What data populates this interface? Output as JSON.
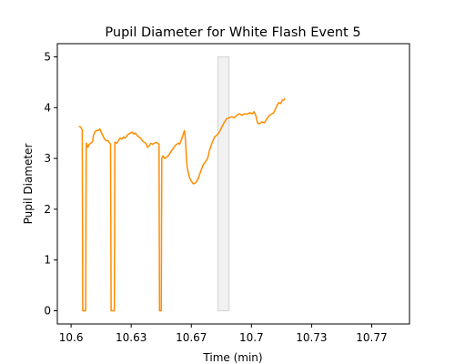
{
  "chart_data": {
    "type": "line",
    "title": "Pupil Diameter for White Flash Event 5",
    "xlabel": "Time (min)",
    "ylabel": "Pupil Diameter",
    "xlim": [
      10.592,
      10.797
    ],
    "ylim": [
      -0.26,
      5.26
    ],
    "x_ticks": [
      {
        "value": 10.6,
        "label": "10.6"
      },
      {
        "value": 10.635,
        "label": "10.63"
      },
      {
        "value": 10.67,
        "label": "10.67"
      },
      {
        "value": 10.705,
        "label": "10.7"
      },
      {
        "value": 10.74,
        "label": "10.73"
      },
      {
        "value": 10.775,
        "label": "10.77"
      }
    ],
    "y_ticks": [
      {
        "value": 0,
        "label": "0"
      },
      {
        "value": 1,
        "label": "1"
      },
      {
        "value": 2,
        "label": "2"
      },
      {
        "value": 3,
        "label": "3"
      },
      {
        "value": 4,
        "label": "4"
      },
      {
        "value": 5,
        "label": "5"
      }
    ],
    "grid": false,
    "legend": "none",
    "shaded_region": {
      "x_start": 10.6855,
      "x_end": 10.692,
      "y_start": 0,
      "y_end": 5,
      "color": "#bbbbbb",
      "opacity": 0.2
    },
    "series": [
      {
        "color": "#ff8c00",
        "points": [
          [
            10.6045,
            3.63
          ],
          [
            10.6055,
            3.62
          ],
          [
            10.6062,
            3.58
          ],
          [
            10.6065,
            3.56
          ],
          [
            10.6068,
            0.0
          ],
          [
            10.6085,
            0.0
          ],
          [
            10.6088,
            3.2
          ],
          [
            10.609,
            3.3
          ],
          [
            10.6098,
            3.22
          ],
          [
            10.6105,
            3.28
          ],
          [
            10.6115,
            3.3
          ],
          [
            10.6125,
            3.33
          ],
          [
            10.613,
            3.45
          ],
          [
            10.6138,
            3.52
          ],
          [
            10.6148,
            3.55
          ],
          [
            10.6158,
            3.55
          ],
          [
            10.6168,
            3.58
          ],
          [
            10.6175,
            3.52
          ],
          [
            10.6185,
            3.45
          ],
          [
            10.6195,
            3.38
          ],
          [
            10.6205,
            3.35
          ],
          [
            10.6215,
            3.35
          ],
          [
            10.6225,
            3.3
          ],
          [
            10.623,
            3.28
          ],
          [
            10.6233,
            0.0
          ],
          [
            10.6252,
            0.0
          ],
          [
            10.6255,
            3.32
          ],
          [
            10.6265,
            3.3
          ],
          [
            10.6275,
            3.35
          ],
          [
            10.6285,
            3.4
          ],
          [
            10.6295,
            3.38
          ],
          [
            10.6305,
            3.42
          ],
          [
            10.6315,
            3.4
          ],
          [
            10.6325,
            3.45
          ],
          [
            10.6335,
            3.48
          ],
          [
            10.6345,
            3.5
          ],
          [
            10.6355,
            3.52
          ],
          [
            10.6365,
            3.48
          ],
          [
            10.6375,
            3.5
          ],
          [
            10.6385,
            3.45
          ],
          [
            10.6395,
            3.42
          ],
          [
            10.6405,
            3.4
          ],
          [
            10.6415,
            3.35
          ],
          [
            10.6425,
            3.32
          ],
          [
            10.6435,
            3.3
          ],
          [
            10.6445,
            3.22
          ],
          [
            10.6455,
            3.25
          ],
          [
            10.6465,
            3.3
          ],
          [
            10.6475,
            3.28
          ],
          [
            10.6485,
            3.3
          ],
          [
            10.6495,
            3.32
          ],
          [
            10.6505,
            3.3
          ],
          [
            10.6512,
            3.28
          ],
          [
            10.6515,
            0.0
          ],
          [
            10.6525,
            0.0
          ],
          [
            10.6528,
            3.0
          ],
          [
            10.6535,
            3.05
          ],
          [
            10.6545,
            3.0
          ],
          [
            10.6555,
            3.02
          ],
          [
            10.6565,
            3.05
          ],
          [
            10.6575,
            3.1
          ],
          [
            10.6585,
            3.15
          ],
          [
            10.6595,
            3.2
          ],
          [
            10.6605,
            3.25
          ],
          [
            10.6615,
            3.28
          ],
          [
            10.6625,
            3.3
          ],
          [
            10.6632,
            3.28
          ],
          [
            10.664,
            3.35
          ],
          [
            10.6648,
            3.42
          ],
          [
            10.6655,
            3.5
          ],
          [
            10.666,
            3.55
          ],
          [
            10.6665,
            3.4
          ],
          [
            10.667,
            3.1
          ],
          [
            10.6675,
            2.85
          ],
          [
            10.6682,
            2.72
          ],
          [
            10.669,
            2.62
          ],
          [
            10.67,
            2.55
          ],
          [
            10.6712,
            2.5
          ],
          [
            10.6725,
            2.52
          ],
          [
            10.674,
            2.6
          ],
          [
            10.6755,
            2.75
          ],
          [
            10.677,
            2.88
          ],
          [
            10.6785,
            2.95
          ],
          [
            10.6795,
            3.0
          ],
          [
            10.6805,
            3.15
          ],
          [
            10.682,
            3.3
          ],
          [
            10.6835,
            3.42
          ],
          [
            10.6845,
            3.45
          ],
          [
            10.686,
            3.5
          ],
          [
            10.6875,
            3.6
          ],
          [
            10.689,
            3.7
          ],
          [
            10.6905,
            3.78
          ],
          [
            10.692,
            3.8
          ],
          [
            10.6935,
            3.82
          ],
          [
            10.695,
            3.8
          ],
          [
            10.6965,
            3.85
          ],
          [
            10.698,
            3.88
          ],
          [
            10.6995,
            3.85
          ],
          [
            10.701,
            3.88
          ],
          [
            10.7025,
            3.87
          ],
          [
            10.704,
            3.9
          ],
          [
            10.7055,
            3.88
          ],
          [
            10.7065,
            3.92
          ],
          [
            10.7075,
            3.85
          ],
          [
            10.7085,
            3.7
          ],
          [
            10.7095,
            3.68
          ],
          [
            10.711,
            3.72
          ],
          [
            10.7125,
            3.7
          ],
          [
            10.714,
            3.78
          ],
          [
            10.7155,
            3.85
          ],
          [
            10.717,
            3.88
          ],
          [
            10.718,
            3.9
          ],
          [
            10.719,
            3.98
          ],
          [
            10.72,
            4.05
          ],
          [
            10.721,
            4.1
          ],
          [
            10.722,
            4.08
          ],
          [
            10.723,
            4.15
          ],
          [
            10.724,
            4.15
          ],
          [
            10.7245,
            4.18
          ]
        ]
      }
    ]
  }
}
